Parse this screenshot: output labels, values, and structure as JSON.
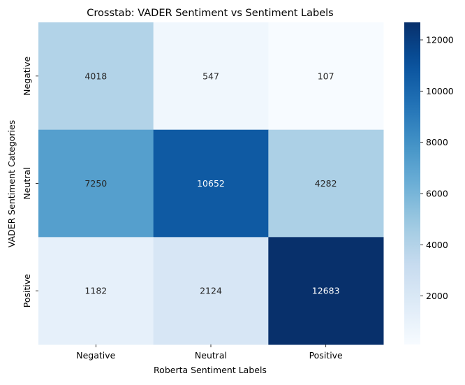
{
  "chart_data": {
    "type": "heatmap",
    "title": "Crosstab: VADER Sentiment vs Sentiment Labels",
    "xlabel": "Roberta Sentiment Labels",
    "ylabel": "VADER Sentiment Categories",
    "x_categories": [
      "Negative",
      "Neutral",
      "Positive"
    ],
    "y_categories": [
      "Negative",
      "Neutral",
      "Positive"
    ],
    "values": [
      [
        4018,
        547,
        107
      ],
      [
        7250,
        10652,
        4282
      ],
      [
        1182,
        2124,
        12683
      ]
    ],
    "colormap": "Blues",
    "color_range": [
      107,
      12683
    ],
    "colorbar_ticks": [
      2000,
      4000,
      6000,
      8000,
      10000,
      12000
    ],
    "colorbar_tick_labels": [
      "2000",
      "4000",
      "6000",
      "8000",
      "10000",
      "12000"
    ],
    "annotations": true
  }
}
